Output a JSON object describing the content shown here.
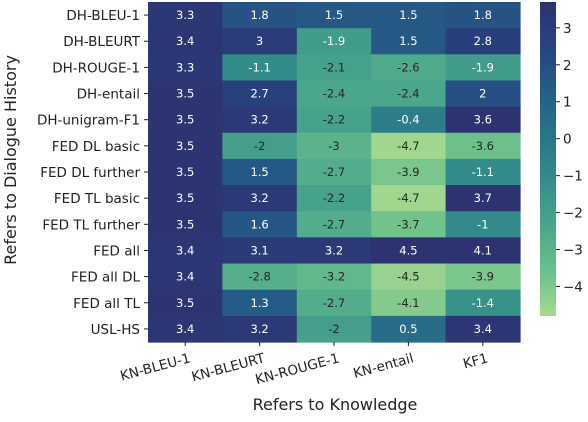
{
  "chart_data": {
    "type": "heatmap",
    "xlabel": "Refers to Knowledge",
    "ylabel": "Refers to Dialogue History",
    "x_categories": [
      "KN-BLEU-1",
      "KN-BLEURT",
      "KN-ROUGE-1",
      "KN-entail",
      "KF1"
    ],
    "y_categories": [
      "DH-BLEU-1",
      "DH-BLEURT",
      "DH-ROUGE-1",
      "DH-entail",
      "DH-unigram-F1",
      "FED DL basic",
      "FED DL further",
      "FED TL basic",
      "FED TL further",
      "FED all",
      "FED all DL",
      "FED all TL",
      "USL-HS"
    ],
    "values": [
      [
        3.3,
        1.8,
        1.5,
        1.5,
        1.8
      ],
      [
        3.4,
        3,
        -1.9,
        1.5,
        2.8
      ],
      [
        3.3,
        -1.1,
        -2.1,
        -2.6,
        -1.9
      ],
      [
        3.5,
        2.7,
        -2.4,
        -2.4,
        2
      ],
      [
        3.5,
        3.2,
        -2.2,
        -0.4,
        3.6
      ],
      [
        3.5,
        -2,
        -3,
        -4.7,
        -3.6
      ],
      [
        3.5,
        1.5,
        -2.7,
        -3.9,
        -1.1
      ],
      [
        3.5,
        3.2,
        -2.2,
        -4.7,
        3.7
      ],
      [
        3.5,
        1.6,
        -2.7,
        -3.7,
        -1
      ],
      [
        3.4,
        3.1,
        3.2,
        4.5,
        4.1
      ],
      [
        3.4,
        -2.8,
        -3.2,
        -4.5,
        -3.9
      ],
      [
        3.5,
        1.3,
        -2.7,
        -4.1,
        -1.4
      ],
      [
        3.4,
        3.2,
        -2,
        0.5,
        3.4
      ]
    ],
    "cell_labels": [
      [
        "3.3",
        "1.8",
        "1.5",
        "1.5",
        "1.8"
      ],
      [
        "3.4",
        "3",
        "-1.9",
        "1.5",
        "2.8"
      ],
      [
        "3.3",
        "-1.1",
        "-2.1",
        "-2.6",
        "-1.9"
      ],
      [
        "3.5",
        "2.7",
        "-2.4",
        "-2.4",
        "2"
      ],
      [
        "3.5",
        "3.2",
        "-2.2",
        "-0.4",
        "3.6"
      ],
      [
        "3.5",
        "-2",
        "-3",
        "-4.7",
        "-3.6"
      ],
      [
        "3.5",
        "1.5",
        "-2.7",
        "-3.9",
        "-1.1"
      ],
      [
        "3.5",
        "3.2",
        "-2.2",
        "-4.7",
        "3.7"
      ],
      [
        "3.5",
        "1.6",
        "-2.7",
        "-3.7",
        "-1"
      ],
      [
        "3.4",
        "3.1",
        "3.2",
        "4.5",
        "4.1"
      ],
      [
        "3.4",
        "-2.8",
        "-3.2",
        "-4.5",
        "-3.9"
      ],
      [
        "3.5",
        "1.3",
        "-2.7",
        "-4.1",
        "-1.4"
      ],
      [
        "3.4",
        "3.2",
        "-2",
        "0.5",
        "3.4"
      ]
    ],
    "colorbar": {
      "ticks": [
        3,
        2,
        1,
        0,
        -1,
        -2,
        -3,
        -4
      ],
      "tick_labels": [
        "3",
        "2",
        "1",
        "0",
        "−1",
        "−2",
        "−3",
        "−4"
      ],
      "range": [
        -4.8,
        3.7
      ],
      "colormap": "crest (light green to dark blue)",
      "colors": [
        "#a6d88f",
        "#6cc08b",
        "#4aa68c",
        "#358d8a",
        "#2a7588",
        "#255d87",
        "#27447f",
        "#2d3270"
      ]
    },
    "grid": false,
    "legend": "colorbar-right"
  }
}
